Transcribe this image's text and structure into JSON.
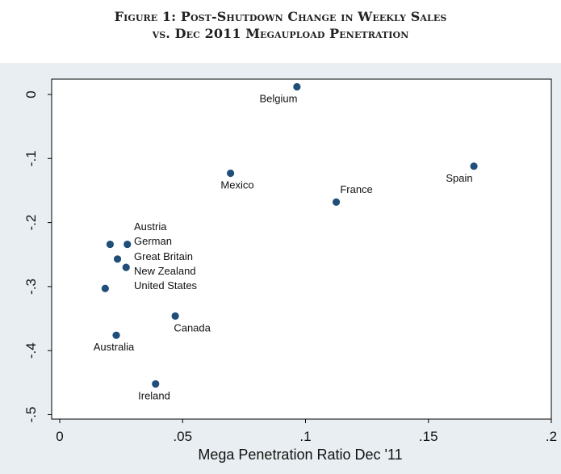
{
  "caption": {
    "line1": "Figure 1: Post-Shutdown Change in Weekly Sales",
    "line2": "vs. Dec 2011 Megaupload Penetration"
  },
  "chart_data": {
    "type": "scatter",
    "title": "Figure 1: Post-Shutdown Change in Weekly Sales vs. Dec 2011 Megaupload Penetration",
    "xlabel": "Mega Penetration Ratio Dec '11",
    "ylabel": "",
    "xlim": [
      0,
      0.2
    ],
    "ylim": [
      -0.5,
      0
    ],
    "grid": false,
    "x_ticks": [
      {
        "value": 0,
        "label": "0"
      },
      {
        "value": 0.05,
        "label": ".05"
      },
      {
        "value": 0.1,
        "label": ".1"
      },
      {
        "value": 0.15,
        "label": ".15"
      },
      {
        "value": 0.2,
        "label": ".2"
      }
    ],
    "y_ticks": [
      {
        "value": 0,
        "label": "0"
      },
      {
        "value": -0.1,
        "label": "-.1"
      },
      {
        "value": -0.2,
        "label": "-.2"
      },
      {
        "value": -0.3,
        "label": "-.3"
      },
      {
        "value": -0.4,
        "label": "-.4"
      },
      {
        "value": -0.5,
        "label": "-.5"
      }
    ],
    "points": [
      {
        "label": "Belgium",
        "x": 0.0965,
        "y": 0.012,
        "label_pos": "below"
      },
      {
        "label": "Mexico",
        "x": 0.0695,
        "y": -0.123,
        "label_pos": "below"
      },
      {
        "label": "France",
        "x": 0.1125,
        "y": -0.168,
        "label_pos": "above-right"
      },
      {
        "label": "Spain",
        "x": 0.1685,
        "y": -0.112,
        "label_pos": "below"
      },
      {
        "label": "Austria",
        "x": 0.0205,
        "y": -0.234,
        "label_pos": "right-stack-1"
      },
      {
        "label": "German",
        "x": 0.0275,
        "y": -0.234,
        "label_pos": "right-stack-2"
      },
      {
        "label": "Great Britain",
        "x": 0.0235,
        "y": -0.257,
        "label_pos": "right-stack-3"
      },
      {
        "label": "New Zealand",
        "x": 0.027,
        "y": -0.27,
        "label_pos": "right-stack-4"
      },
      {
        "label": "United States",
        "x": 0.0185,
        "y": -0.303,
        "label_pos": "right-stack-5"
      },
      {
        "label": "Canada",
        "x": 0.047,
        "y": -0.346,
        "label_pos": "below-right"
      },
      {
        "label": "Australia",
        "x": 0.023,
        "y": -0.376,
        "label_pos": "below"
      },
      {
        "label": "Ireland",
        "x": 0.039,
        "y": -0.452,
        "label_pos": "below"
      }
    ],
    "marker_color": "#1f4e79",
    "axis_color": "#000000",
    "plot_background": "#ffffff",
    "outer_background": "#e8eef1"
  }
}
